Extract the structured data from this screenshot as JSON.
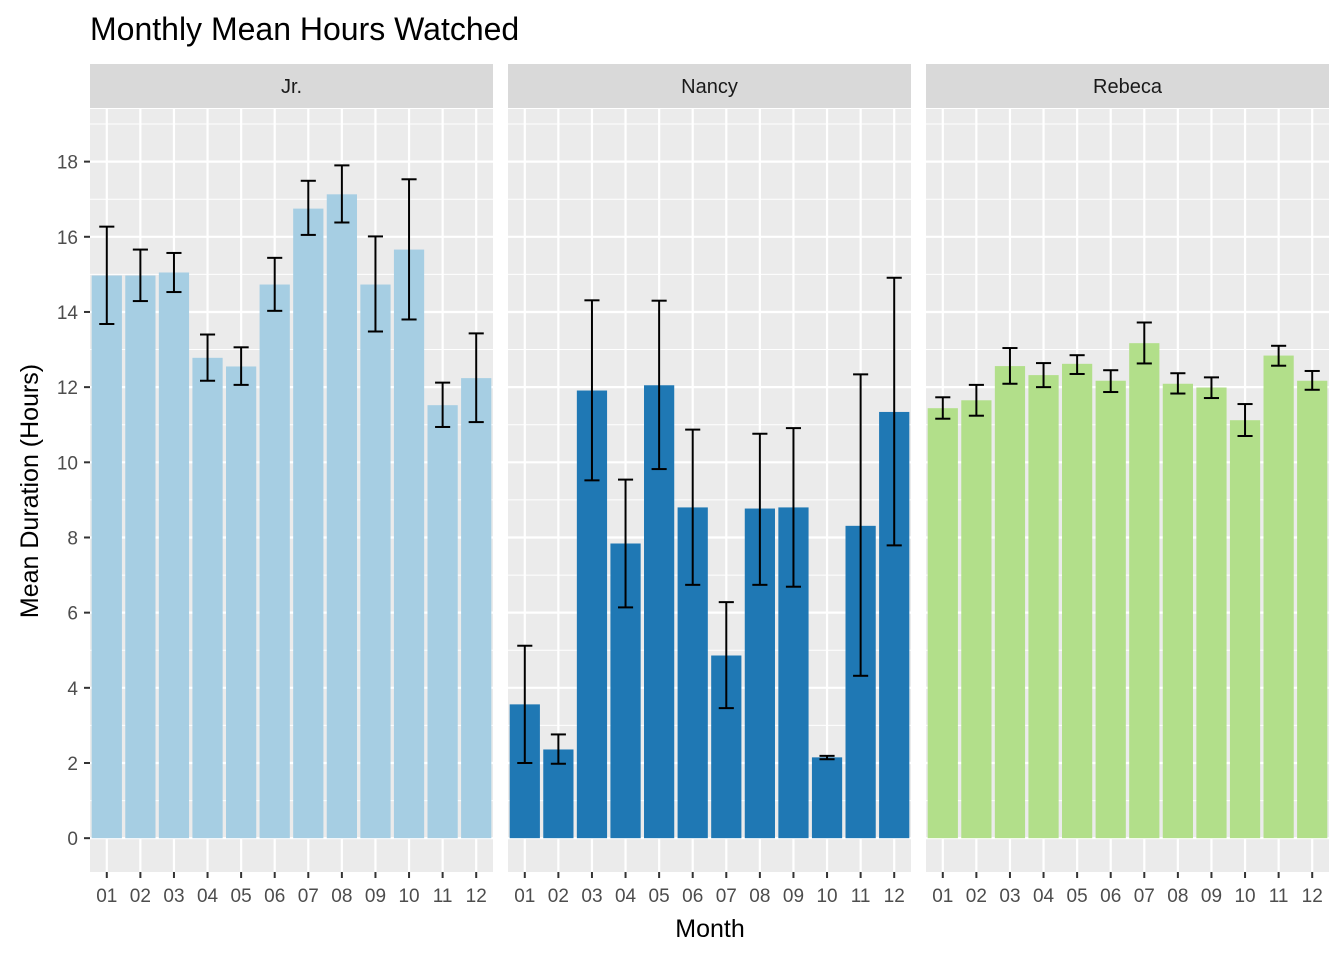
{
  "chart_data": {
    "type": "bar",
    "title": "Monthly Mean Hours Watched",
    "xlabel": "Month",
    "ylabel": "Mean Duration (Hours)",
    "ylim": [
      -0.9,
      19.4
    ],
    "yticks": [
      0,
      2,
      4,
      6,
      8,
      10,
      12,
      14,
      16,
      18
    ],
    "categories": [
      "01",
      "02",
      "03",
      "04",
      "05",
      "06",
      "07",
      "08",
      "09",
      "10",
      "11",
      "12"
    ],
    "grid": true,
    "legend": "none",
    "error_bars": true,
    "facets": [
      {
        "name": "Jr.",
        "color": "#a6cee3",
        "values": [
          14.97,
          14.97,
          15.05,
          12.78,
          12.55,
          14.73,
          16.75,
          17.13,
          14.73,
          15.66,
          11.52,
          12.24
        ],
        "error_low": [
          13.68,
          14.29,
          14.53,
          12.17,
          12.06,
          14.03,
          16.05,
          16.38,
          13.48,
          13.8,
          10.94,
          11.07
        ],
        "error_high": [
          16.27,
          15.66,
          15.57,
          13.4,
          13.06,
          15.44,
          17.49,
          17.9,
          16.01,
          17.53,
          12.12,
          13.43
        ]
      },
      {
        "name": "Nancy",
        "color": "#1f78b4",
        "values": [
          3.56,
          2.36,
          11.91,
          7.84,
          12.05,
          8.8,
          4.86,
          8.77,
          8.8,
          2.15,
          8.31,
          11.34
        ],
        "error_low": [
          2.0,
          1.98,
          9.52,
          6.14,
          9.82,
          6.74,
          3.46,
          6.74,
          6.69,
          2.1,
          4.32,
          7.79
        ],
        "error_high": [
          5.12,
          2.76,
          14.31,
          9.54,
          14.3,
          10.87,
          6.28,
          10.76,
          10.91,
          2.19,
          12.34,
          14.91
        ]
      },
      {
        "name": "Rebeca",
        "color": "#b2df8a",
        "values": [
          11.44,
          11.65,
          12.56,
          12.32,
          12.62,
          12.17,
          13.17,
          12.09,
          11.99,
          11.12,
          12.84,
          12.17
        ],
        "error_low": [
          11.16,
          11.24,
          12.09,
          12.0,
          12.35,
          11.87,
          12.63,
          11.83,
          11.71,
          10.7,
          12.57,
          11.93
        ],
        "error_high": [
          11.73,
          12.06,
          13.04,
          12.64,
          12.85,
          12.45,
          13.72,
          12.37,
          12.26,
          11.55,
          13.1,
          12.43
        ]
      }
    ]
  }
}
